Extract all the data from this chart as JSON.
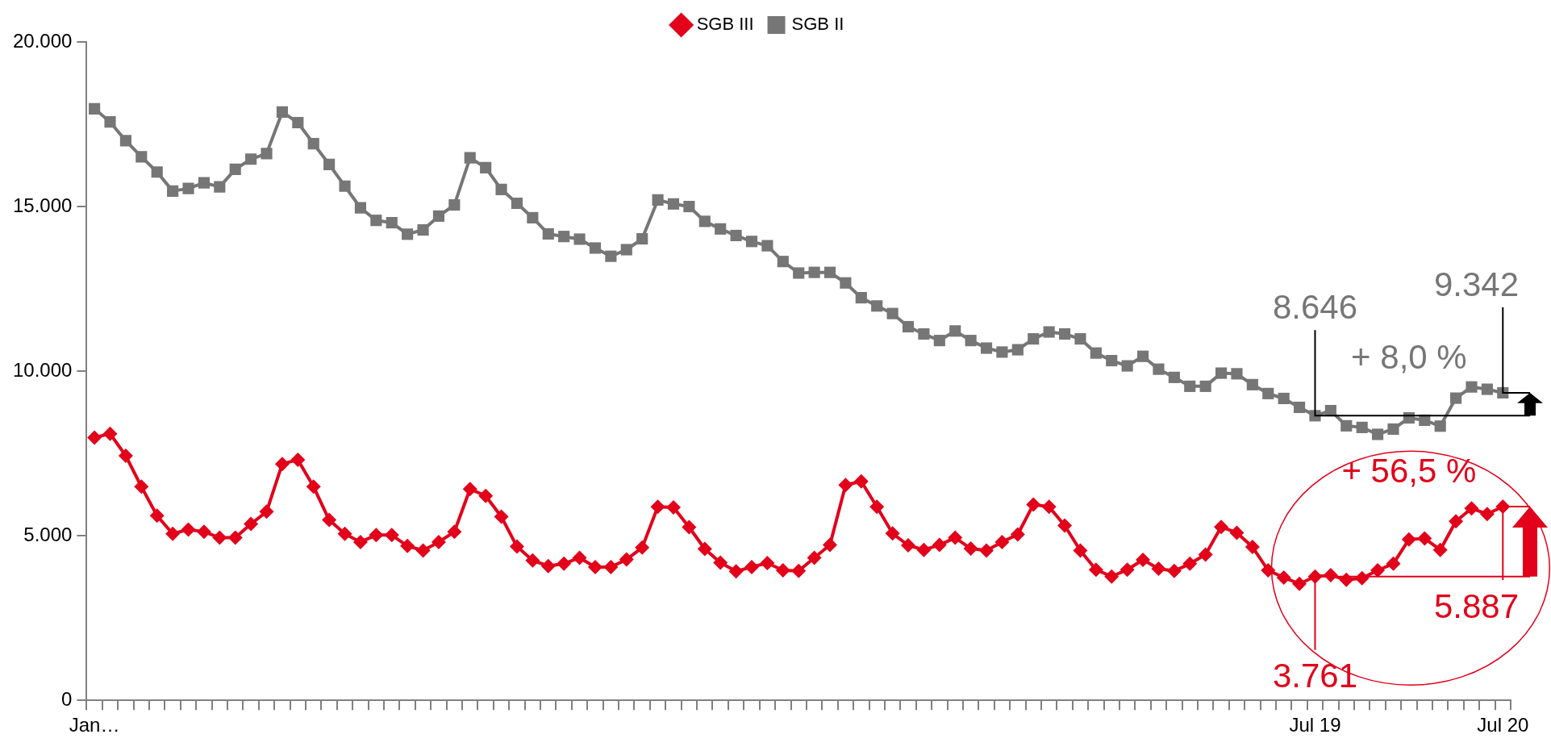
{
  "chart_data": {
    "type": "line",
    "categories": [
      "Jan…",
      null,
      null,
      null,
      null,
      null,
      null,
      null,
      null,
      null,
      null,
      null,
      null,
      null,
      null,
      null,
      null,
      null,
      null,
      null,
      null,
      null,
      null,
      null,
      null,
      null,
      null,
      null,
      null,
      null,
      null,
      null,
      null,
      null,
      null,
      null,
      null,
      null,
      null,
      null,
      null,
      null,
      null,
      null,
      null,
      null,
      null,
      null,
      null,
      null,
      null,
      null,
      null,
      null,
      null,
      null,
      null,
      null,
      null,
      null,
      null,
      null,
      null,
      null,
      null,
      null,
      null,
      null,
      null,
      null,
      null,
      null,
      null,
      null,
      null,
      null,
      null,
      null,
      "Jul 19",
      null,
      null,
      null,
      null,
      null,
      null,
      null,
      null,
      null,
      null,
      null,
      "Jul 20"
    ],
    "series": [
      {
        "name": "SGB III",
        "color": "#e2001a",
        "marker": "diamond",
        "values": [
          7980,
          8100,
          7430,
          6490,
          5610,
          5060,
          5190,
          5120,
          4940,
          4940,
          5360,
          5730,
          7180,
          7310,
          6490,
          5480,
          5060,
          4810,
          5020,
          5020,
          4690,
          4550,
          4810,
          5120,
          6420,
          6210,
          5580,
          4670,
          4250,
          4080,
          4150,
          4330,
          4050,
          4050,
          4280,
          4640,
          5880,
          5860,
          5260,
          4600,
          4180,
          3920,
          4050,
          4170,
          3950,
          3930,
          4330,
          4720,
          6540,
          6650,
          5880,
          5070,
          4710,
          4570,
          4720,
          4940,
          4610,
          4550,
          4810,
          5040,
          5950,
          5880,
          5310,
          4550,
          3970,
          3760,
          3970,
          4270,
          4000,
          3930,
          4150,
          4430,
          5270,
          5090,
          4660,
          3950,
          3730,
          3540,
          3761,
          3800,
          3660,
          3710,
          3950,
          4150,
          4890,
          4920,
          4570,
          5440,
          5830,
          5660,
          5887
        ]
      },
      {
        "name": "SGB II",
        "color": "#767676",
        "marker": "square",
        "values": [
          17970,
          17570,
          17000,
          16510,
          16050,
          15470,
          15550,
          15720,
          15600,
          16130,
          16440,
          16610,
          17870,
          17550,
          16910,
          16280,
          15620,
          14960,
          14580,
          14510,
          14160,
          14290,
          14710,
          15050,
          16480,
          16180,
          15520,
          15100,
          14660,
          14170,
          14090,
          14010,
          13740,
          13490,
          13690,
          14020,
          15200,
          15080,
          15000,
          14550,
          14320,
          14120,
          13940,
          13810,
          13330,
          12980,
          13000,
          13000,
          12680,
          12230,
          11980,
          11750,
          11350,
          11130,
          10930,
          11220,
          10930,
          10700,
          10580,
          10650,
          10980,
          11190,
          11130,
          10980,
          10550,
          10320,
          10160,
          10450,
          10060,
          9810,
          9540,
          9540,
          9940,
          9920,
          9590,
          9320,
          9170,
          8900,
          8646,
          8800,
          8340,
          8290,
          8080,
          8240,
          8580,
          8510,
          8330,
          9180,
          9520,
          9450,
          9342
        ]
      }
    ],
    "ylim": [
      0,
      20000
    ],
    "yticks": [
      {
        "value": 0,
        "label": "0"
      },
      {
        "value": 5000,
        "label": "5.000"
      },
      {
        "value": 10000,
        "label": "10.000"
      },
      {
        "value": 15000,
        "label": "15.000"
      },
      {
        "value": 20000,
        "label": "20.000"
      }
    ],
    "grid": false,
    "legend": "top",
    "line_style": "solid",
    "annotations": [
      {
        "text": "8.646",
        "x": "Jul 19",
        "y": 8646
      },
      {
        "text": "9.342",
        "x": "Jul 20",
        "y": 9342
      },
      "+ 8,0 %",
      {
        "text": "3.761",
        "x": "Jul 19",
        "y": 3761
      },
      {
        "text": "5.887",
        "x": "Jul 20",
        "y": 5887
      },
      "+ 56,5 %"
    ]
  }
}
